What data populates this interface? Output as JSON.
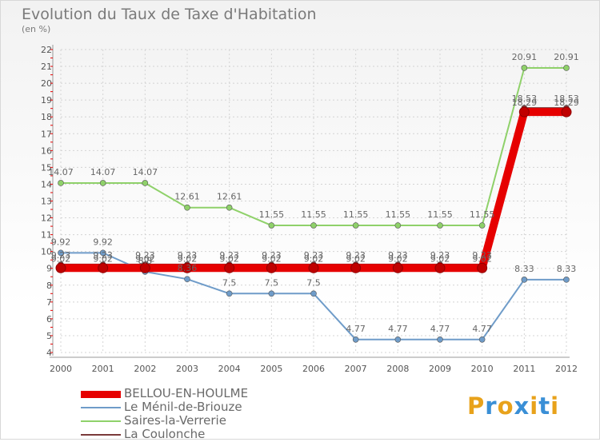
{
  "header": {
    "title": "Evolution du Taux de Taxe d'Habitation",
    "subtitle": "(en %)"
  },
  "logo": {
    "text": "Proxiti",
    "letters": [
      "P",
      "r",
      "o",
      "x",
      "i",
      "t",
      "i"
    ],
    "colors": [
      "#e8a21b",
      "#3a8fd6",
      "#e8a21b",
      "#3a8fd6",
      "#e8a21b",
      "#3a8fd6",
      "#e8a21b"
    ]
  },
  "chart_data": {
    "type": "line",
    "title": "Evolution du Taux de Taxe d'Habitation",
    "ylabel": "(en %)",
    "xlabel": "",
    "ylim": [
      4,
      22
    ],
    "yticks": [
      4,
      5,
      6,
      7,
      8,
      9,
      10,
      11,
      12,
      13,
      14,
      15,
      16,
      17,
      18,
      19,
      20,
      21,
      22
    ],
    "grid": true,
    "legend_position": "bottom-left",
    "x": [
      "2000",
      "2001",
      "2002",
      "2003",
      "2004",
      "2005",
      "2006",
      "2007",
      "2008",
      "2009",
      "2010",
      "2011",
      "2012"
    ],
    "series": [
      {
        "name": "BELLOU-EN-HOULME",
        "color": "#e60000",
        "width": 10,
        "values": [
          9.02,
          9.02,
          9.02,
          9.02,
          9.02,
          9.02,
          9.02,
          9.02,
          9.02,
          9.02,
          9.02,
          18.29,
          18.29
        ],
        "labels": [
          "9.02",
          "9.02",
          "9.02",
          "9.02",
          "9.02",
          "9.02",
          "9.02",
          "9.02",
          "9.02",
          "9.02",
          "9.02",
          "18.29",
          "18.29"
        ]
      },
      {
        "name": "Le Ménil-de-Briouze",
        "color": "#6f9cc9",
        "width": 2,
        "values": [
          9.92,
          9.92,
          8.8,
          8.36,
          7.5,
          7.5,
          7.5,
          4.77,
          4.77,
          4.77,
          4.77,
          8.33,
          8.33
        ],
        "labels": [
          "9.92",
          "9.92",
          "8.8",
          "8.36",
          "7.5",
          "7.5",
          "7.5",
          "4.77",
          "4.77",
          "4.77",
          "4.77",
          "8.33",
          "8.33"
        ]
      },
      {
        "name": "Saires-la-Verrerie",
        "color": "#8fd16a",
        "width": 2,
        "values": [
          14.07,
          14.07,
          14.07,
          12.61,
          12.61,
          11.55,
          11.55,
          11.55,
          11.55,
          11.55,
          11.55,
          20.91,
          20.91
        ],
        "labels": [
          "14.07",
          "14.07",
          "14.07",
          "12.61",
          "12.61",
          "11.55",
          "11.55",
          "11.55",
          "11.55",
          "11.55",
          "11.55",
          "20.91",
          "20.91"
        ]
      },
      {
        "name": "La Coulonche",
        "color": "#7a3a3a",
        "width": 2,
        "values": [
          9.23,
          9.23,
          9.23,
          9.23,
          9.23,
          9.23,
          9.23,
          9.23,
          9.23,
          9.23,
          9.23,
          18.53,
          18.53
        ],
        "labels": [
          "9.23",
          "9.23",
          "9.23",
          "9.23",
          "9.23",
          "9.23",
          "9.23",
          "9.23",
          "9.23",
          "9.23",
          "9.23",
          "18.53",
          "18.53"
        ]
      }
    ]
  }
}
